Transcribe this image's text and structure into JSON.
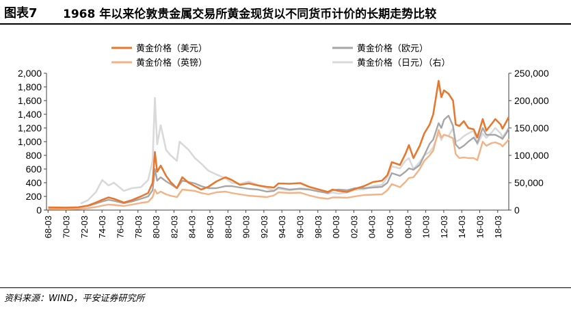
{
  "figure": {
    "label": "图表7",
    "title": "1968 年以来伦敦贵金属交易所黄金现货以不同货币计价的长期走势比较",
    "source": "资料来源：WIND，平安证券研究所"
  },
  "chart_data": {
    "type": "line",
    "x_tick_labels": [
      "68-03",
      "70-03",
      "72-03",
      "74-03",
      "76-03",
      "78-03",
      "80-03",
      "82-03",
      "84-03",
      "86-03",
      "88-03",
      "90-03",
      "92-03",
      "94-03",
      "96-03",
      "98-03",
      "00-03",
      "02-03",
      "04-03",
      "06-03",
      "08-03",
      "10-03",
      "12-03",
      "14-03",
      "16-03",
      "18-03"
    ],
    "x_range": [
      1968.0,
      2019.4
    ],
    "y_left": {
      "min": 0,
      "max": 2000,
      "step": 200,
      "tick_labels": [
        "0",
        "200",
        "400",
        "600",
        "800",
        "1,000",
        "1,200",
        "1,400",
        "1,600",
        "1,800",
        "2,000"
      ]
    },
    "y_right": {
      "min": 0,
      "max": 250000,
      "step": 50000,
      "tick_labels": [
        "0",
        "50,000",
        "100,000",
        "150,000",
        "200,000",
        "250,000"
      ]
    },
    "legend_placement": "top",
    "grid": false,
    "series": [
      {
        "name": "黄金价格（美元）",
        "axis": "left",
        "color": "#E8772E",
        "width": 2.6,
        "points": [
          [
            1968.2,
            38
          ],
          [
            1970.2,
            35
          ],
          [
            1971.5,
            40
          ],
          [
            1972.6,
            65
          ],
          [
            1973.5,
            110
          ],
          [
            1974.2,
            150
          ],
          [
            1974.9,
            185
          ],
          [
            1975.5,
            165
          ],
          [
            1976.6,
            110
          ],
          [
            1977.5,
            145
          ],
          [
            1978.5,
            200
          ],
          [
            1979.3,
            250
          ],
          [
            1979.8,
            400
          ],
          [
            1980.05,
            850
          ],
          [
            1980.3,
            560
          ],
          [
            1980.7,
            650
          ],
          [
            1981.3,
            500
          ],
          [
            1981.8,
            410
          ],
          [
            1982.5,
            320
          ],
          [
            1983.1,
            480
          ],
          [
            1983.8,
            400
          ],
          [
            1984.5,
            350
          ],
          [
            1985.2,
            300
          ],
          [
            1986.0,
            340
          ],
          [
            1986.9,
            420
          ],
          [
            1987.9,
            480
          ],
          [
            1988.6,
            440
          ],
          [
            1989.5,
            370
          ],
          [
            1990.5,
            390
          ],
          [
            1991.5,
            360
          ],
          [
            1992.5,
            340
          ],
          [
            1993.3,
            330
          ],
          [
            1993.8,
            390
          ],
          [
            1995.0,
            385
          ],
          [
            1996.2,
            395
          ],
          [
            1997.2,
            340
          ],
          [
            1998.3,
            300
          ],
          [
            1999.3,
            265
          ],
          [
            1999.8,
            300
          ],
          [
            2000.5,
            280
          ],
          [
            2001.4,
            265
          ],
          [
            2002.3,
            310
          ],
          [
            2003.3,
            350
          ],
          [
            2004.3,
            410
          ],
          [
            2005.3,
            430
          ],
          [
            2005.9,
            510
          ],
          [
            2006.4,
            700
          ],
          [
            2007.3,
            660
          ],
          [
            2007.9,
            820
          ],
          [
            2008.3,
            950
          ],
          [
            2008.8,
            760
          ],
          [
            2009.5,
            940
          ],
          [
            2010.0,
            1120
          ],
          [
            2010.6,
            1250
          ],
          [
            2011.0,
            1400
          ],
          [
            2011.6,
            1890
          ],
          [
            2011.9,
            1650
          ],
          [
            2012.2,
            1750
          ],
          [
            2012.7,
            1700
          ],
          [
            2013.2,
            1600
          ],
          [
            2013.5,
            1250
          ],
          [
            2013.9,
            1230
          ],
          [
            2014.4,
            1300
          ],
          [
            2014.9,
            1200
          ],
          [
            2015.5,
            1180
          ],
          [
            2015.9,
            1060
          ],
          [
            2016.5,
            1330
          ],
          [
            2016.9,
            1160
          ],
          [
            2017.5,
            1260
          ],
          [
            2017.9,
            1330
          ],
          [
            2018.5,
            1250
          ],
          [
            2018.7,
            1190
          ],
          [
            2019.2,
            1310
          ],
          [
            2019.4,
            1360
          ]
        ]
      },
      {
        "name": "黄金价格（欧元）",
        "axis": "left",
        "color": "#A6A6A6",
        "width": 2.4,
        "points": [
          [
            1968.2,
            40
          ],
          [
            1970.2,
            38
          ],
          [
            1971.5,
            42
          ],
          [
            1972.6,
            62
          ],
          [
            1973.5,
            95
          ],
          [
            1974.2,
            125
          ],
          [
            1974.9,
            150
          ],
          [
            1975.5,
            135
          ],
          [
            1976.6,
            100
          ],
          [
            1977.5,
            125
          ],
          [
            1978.5,
            165
          ],
          [
            1979.3,
            200
          ],
          [
            1979.8,
            290
          ],
          [
            1980.05,
            600
          ],
          [
            1980.3,
            430
          ],
          [
            1980.7,
            480
          ],
          [
            1981.3,
            420
          ],
          [
            1981.8,
            380
          ],
          [
            1982.5,
            320
          ],
          [
            1983.1,
            430
          ],
          [
            1983.8,
            410
          ],
          [
            1984.5,
            390
          ],
          [
            1985.2,
            350
          ],
          [
            1986.0,
            320
          ],
          [
            1986.9,
            320
          ],
          [
            1987.9,
            350
          ],
          [
            1988.6,
            350
          ],
          [
            1989.5,
            330
          ],
          [
            1990.5,
            310
          ],
          [
            1991.5,
            300
          ],
          [
            1992.5,
            270
          ],
          [
            1993.3,
            280
          ],
          [
            1993.8,
            330
          ],
          [
            1995.0,
            300
          ],
          [
            1996.2,
            310
          ],
          [
            1997.2,
            300
          ],
          [
            1998.3,
            270
          ],
          [
            1999.3,
            250
          ],
          [
            1999.8,
            290
          ],
          [
            2000.5,
            300
          ],
          [
            2001.4,
            290
          ],
          [
            2002.3,
            320
          ],
          [
            2003.3,
            320
          ],
          [
            2004.3,
            330
          ],
          [
            2005.3,
            340
          ],
          [
            2005.9,
            400
          ],
          [
            2006.4,
            540
          ],
          [
            2007.3,
            500
          ],
          [
            2007.9,
            560
          ],
          [
            2008.3,
            610
          ],
          [
            2008.8,
            590
          ],
          [
            2009.5,
            660
          ],
          [
            2010.0,
            800
          ],
          [
            2010.6,
            970
          ],
          [
            2011.0,
            1030
          ],
          [
            2011.6,
            1270
          ],
          [
            2011.9,
            1200
          ],
          [
            2012.2,
            1320
          ],
          [
            2012.7,
            1380
          ],
          [
            2013.2,
            1230
          ],
          [
            2013.5,
            960
          ],
          [
            2013.9,
            900
          ],
          [
            2014.4,
            940
          ],
          [
            2014.9,
            1000
          ],
          [
            2015.5,
            1060
          ],
          [
            2015.9,
            980
          ],
          [
            2016.5,
            1200
          ],
          [
            2016.9,
            1100
          ],
          [
            2017.5,
            1100
          ],
          [
            2017.9,
            1100
          ],
          [
            2018.5,
            1060
          ],
          [
            2018.7,
            1040
          ],
          [
            2019.2,
            1140
          ],
          [
            2019.4,
            1200
          ]
        ]
      },
      {
        "name": "黄金价格（英镑）",
        "axis": "left",
        "color": "#F4B183",
        "width": 2.4,
        "points": [
          [
            1968.2,
            16
          ],
          [
            1970.2,
            15
          ],
          [
            1971.5,
            17
          ],
          [
            1972.6,
            28
          ],
          [
            1973.5,
            45
          ],
          [
            1974.2,
            65
          ],
          [
            1974.9,
            80
          ],
          [
            1975.5,
            75
          ],
          [
            1976.6,
            60
          ],
          [
            1977.5,
            80
          ],
          [
            1978.5,
            105
          ],
          [
            1979.3,
            120
          ],
          [
            1979.8,
            190
          ],
          [
            1980.05,
            300
          ],
          [
            1980.3,
            240
          ],
          [
            1980.7,
            270
          ],
          [
            1981.3,
            230
          ],
          [
            1981.8,
            210
          ],
          [
            1982.5,
            190
          ],
          [
            1983.1,
            300
          ],
          [
            1983.8,
            290
          ],
          [
            1984.5,
            280
          ],
          [
            1985.2,
            250
          ],
          [
            1986.0,
            230
          ],
          [
            1986.9,
            260
          ],
          [
            1987.9,
            270
          ],
          [
            1988.6,
            250
          ],
          [
            1989.5,
            230
          ],
          [
            1990.5,
            210
          ],
          [
            1991.5,
            200
          ],
          [
            1992.5,
            190
          ],
          [
            1993.3,
            215
          ],
          [
            1993.8,
            260
          ],
          [
            1995.0,
            250
          ],
          [
            1996.2,
            255
          ],
          [
            1997.2,
            215
          ],
          [
            1998.3,
            180
          ],
          [
            1999.3,
            165
          ],
          [
            1999.8,
            185
          ],
          [
            2000.5,
            185
          ],
          [
            2001.4,
            180
          ],
          [
            2002.3,
            200
          ],
          [
            2003.3,
            220
          ],
          [
            2004.3,
            225
          ],
          [
            2005.3,
            230
          ],
          [
            2005.9,
            290
          ],
          [
            2006.4,
            380
          ],
          [
            2007.3,
            335
          ],
          [
            2007.9,
            410
          ],
          [
            2008.3,
            470
          ],
          [
            2008.8,
            480
          ],
          [
            2009.5,
            600
          ],
          [
            2010.0,
            720
          ],
          [
            2010.6,
            800
          ],
          [
            2011.0,
            870
          ],
          [
            2011.6,
            1170
          ],
          [
            2011.9,
            1060
          ],
          [
            2012.2,
            1100
          ],
          [
            2012.7,
            1080
          ],
          [
            2013.2,
            1050
          ],
          [
            2013.5,
            820
          ],
          [
            2013.9,
            760
          ],
          [
            2014.4,
            770
          ],
          [
            2014.9,
            760
          ],
          [
            2015.5,
            760
          ],
          [
            2015.9,
            730
          ],
          [
            2016.5,
            1000
          ],
          [
            2016.9,
            940
          ],
          [
            2017.5,
            980
          ],
          [
            2017.9,
            990
          ],
          [
            2018.5,
            960
          ],
          [
            2018.7,
            930
          ],
          [
            2019.2,
            1000
          ],
          [
            2019.4,
            1040
          ]
        ]
      },
      {
        "name": "黄金价格（日元）（右）",
        "axis": "right",
        "color": "#D9D9D9",
        "width": 2.6,
        "points": [
          [
            1971.8,
            12000
          ],
          [
            1972.6,
            18000
          ],
          [
            1973.5,
            33000
          ],
          [
            1974.2,
            55000
          ],
          [
            1974.9,
            45000
          ],
          [
            1975.5,
            50000
          ],
          [
            1976.6,
            35000
          ],
          [
            1977.5,
            40000
          ],
          [
            1978.5,
            42000
          ],
          [
            1979.3,
            55000
          ],
          [
            1979.8,
            90000
          ],
          [
            1980.05,
            205000
          ],
          [
            1980.3,
            120000
          ],
          [
            1980.7,
            155000
          ],
          [
            1981.3,
            110000
          ],
          [
            1981.8,
            100000
          ],
          [
            1982.5,
            90000
          ],
          [
            1982.8,
            125000
          ],
          [
            1983.8,
            110000
          ],
          [
            1984.5,
            95000
          ],
          [
            1985.2,
            85000
          ],
          [
            1986.0,
            72000
          ],
          [
            1986.9,
            65000
          ],
          [
            1987.9,
            58000
          ],
          [
            1988.6,
            50000
          ],
          [
            1989.5,
            48000
          ],
          [
            1990.5,
            52000
          ],
          [
            1991.5,
            46000
          ],
          [
            1992.5,
            40000
          ],
          [
            1993.3,
            36000
          ],
          [
            1993.8,
            39000
          ],
          [
            1995.0,
            36000
          ],
          [
            1996.2,
            40000
          ],
          [
            1997.2,
            38000
          ],
          [
            1998.3,
            35000
          ],
          [
            1999.3,
            30000
          ],
          [
            1999.8,
            32000
          ],
          [
            2000.5,
            30000
          ],
          [
            2001.4,
            32000
          ],
          [
            2002.3,
            37000
          ],
          [
            2003.3,
            38000
          ],
          [
            2004.3,
            44000
          ],
          [
            2005.3,
            46000
          ],
          [
            2005.9,
            60000
          ],
          [
            2006.4,
            80000
          ],
          [
            2007.3,
            76000
          ],
          [
            2007.9,
            90000
          ],
          [
            2008.3,
            95000
          ],
          [
            2008.8,
            75000
          ],
          [
            2009.5,
            88000
          ],
          [
            2010.0,
            100000
          ],
          [
            2010.6,
            106000
          ],
          [
            2011.0,
            115000
          ],
          [
            2011.6,
            140000
          ],
          [
            2011.9,
            128000
          ],
          [
            2012.2,
            138000
          ],
          [
            2012.7,
            135000
          ],
          [
            2013.2,
            150000
          ],
          [
            2013.5,
            125000
          ],
          [
            2013.9,
            128000
          ],
          [
            2014.4,
            135000
          ],
          [
            2014.9,
            140000
          ],
          [
            2015.5,
            145000
          ],
          [
            2015.9,
            120000
          ],
          [
            2016.5,
            140000
          ],
          [
            2016.9,
            132000
          ],
          [
            2017.5,
            142000
          ],
          [
            2017.9,
            150000
          ],
          [
            2018.5,
            140000
          ],
          [
            2018.7,
            133000
          ],
          [
            2019.2,
            145000
          ],
          [
            2019.4,
            150000
          ]
        ]
      }
    ]
  }
}
